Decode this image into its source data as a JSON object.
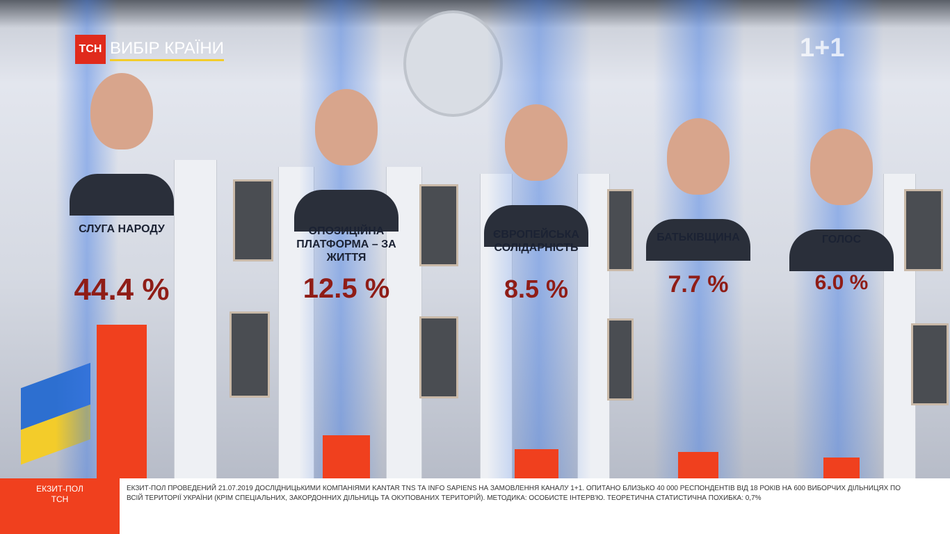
{
  "header": {
    "logo": "ТСН",
    "program": "ВИБІР КРАЇНИ",
    "channel": "1+1"
  },
  "chart_data": {
    "type": "bar",
    "categories": [
      "СЛУГА НАРОДУ",
      "ОПОЗИЦІЙНА ПЛАТФОРМА – ЗА ЖИТТЯ",
      "ЄВРОПЕЙСЬКА СОЛІДАРНІСТЬ",
      "БАТЬКІВЩИНА",
      "ГОЛОС"
    ],
    "values": [
      44.4,
      12.5,
      8.5,
      7.7,
      6.0
    ],
    "value_labels": [
      "44.4 %",
      "12.5 %",
      "8.5 %",
      "7.7 %",
      "6.0 %"
    ],
    "color": "#f0401e"
  },
  "ticker": {
    "label": "ЕКЗИТ-ПОЛ ТСН",
    "text": "ЕКЗИТ-ПОЛ ПРОВЕДЕНИЙ 21.07.2019 ДОСЛІДНИЦЬКИМИ КОМПАНІЯМИ KANTAR TNS ТА INFO SAPIENS НА ЗАМОВЛЕННЯ КАНАЛУ 1+1. ОПИТАНО БЛИЗЬКО 40 000 РЕСПОНДЕНТІВ ВІД 18 РОКІВ НА 600 ВИБОРЧИХ ДІЛЬНИЦЯХ ПО ВСІЙ ТЕРИТОРІЇ УКРАЇНИ (КРІМ СПЕЦІАЛЬНИХ, ЗАКОРДОННИХ ДІЛЬНИЦЬ ТА ОКУПОВАНИХ ТЕРИТОРІЙ). МЕТОДИКА: ОСОБИСТЕ ІНТЕРВ'Ю. ТЕОРЕТИЧНА СТАТИСТИЧНА ПОХИБКА: 0,7%"
  }
}
